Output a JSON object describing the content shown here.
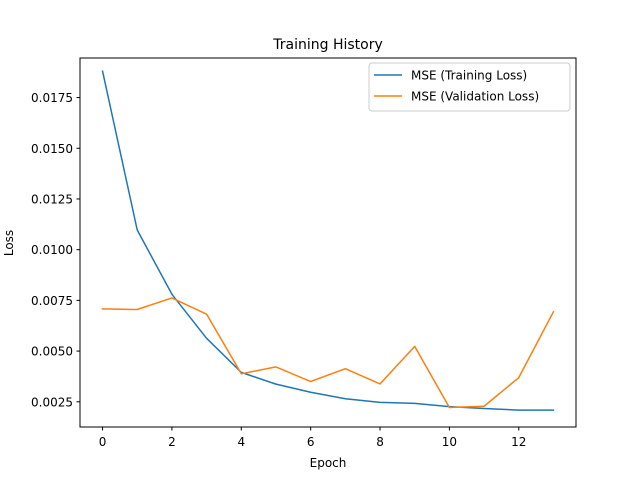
{
  "chart_data": {
    "type": "line",
    "title": "Training History",
    "xlabel": "Epoch",
    "ylabel": "Loss",
    "xlim": [
      -0.65,
      13.65
    ],
    "ylim": [
      0.001257,
      0.01945
    ],
    "x_ticks": [
      0,
      2,
      4,
      6,
      8,
      10,
      12
    ],
    "y_ticks": [
      0.0025,
      0.005,
      0.0075,
      0.01,
      0.0125,
      0.015,
      0.0175
    ],
    "y_tick_labels": [
      "0.0025",
      "0.0050",
      "0.0075",
      "0.0100",
      "0.0125",
      "0.0150",
      "0.0175"
    ],
    "grid": false,
    "legend": "top-right",
    "x": [
      0,
      1,
      2,
      3,
      4,
      5,
      6,
      7,
      8,
      9,
      10,
      11,
      12,
      13
    ],
    "series": [
      {
        "name": "MSE (Training Loss)",
        "color": "#1f77b4",
        "values": [
          0.0188,
          0.01097,
          0.0078,
          0.00563,
          0.00395,
          0.00337,
          0.00297,
          0.00265,
          0.00247,
          0.00242,
          0.00226,
          0.00217,
          0.00209,
          0.00209
        ]
      },
      {
        "name": "MSE (Validation Loss)",
        "color": "#ff7f0e",
        "values": [
          0.00708,
          0.00705,
          0.00762,
          0.00682,
          0.00388,
          0.00422,
          0.0035,
          0.00413,
          0.00338,
          0.00523,
          0.00222,
          0.00228,
          0.00369,
          0.00694
        ]
      }
    ]
  }
}
